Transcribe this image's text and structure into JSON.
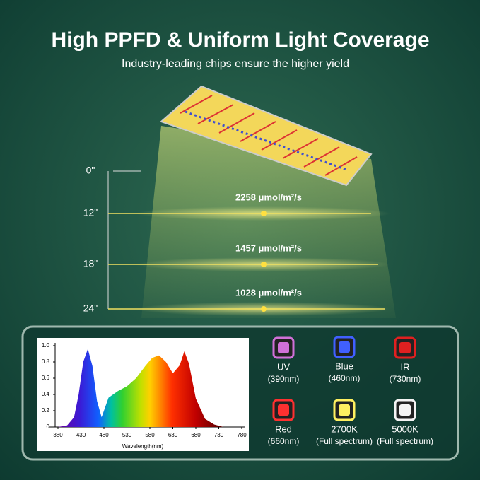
{
  "header": {
    "title": "High PPFD & Uniform Light Coverage",
    "subtitle": "Industry-leading chips ensure the higher yield"
  },
  "heights": [
    {
      "label": "0\""
    },
    {
      "label": "12\"",
      "ppfd": "2258 μmol/m²/s"
    },
    {
      "label": "18\"",
      "ppfd": "1457 μmol/m²/s"
    },
    {
      "label": "24\"",
      "ppfd": "1028 μmol/m²/s"
    }
  ],
  "spectrum": {
    "xlabel": "Wavelength(nm)",
    "x": [
      380,
      400,
      415,
      425,
      435,
      445,
      455,
      465,
      475,
      490,
      510,
      530,
      550,
      570,
      585,
      600,
      615,
      630,
      645,
      655,
      665,
      680,
      700,
      720,
      740
    ],
    "values": [
      0,
      0.02,
      0.12,
      0.4,
      0.8,
      0.96,
      0.75,
      0.32,
      0.12,
      0.36,
      0.44,
      0.5,
      0.6,
      0.75,
      0.85,
      0.88,
      0.8,
      0.66,
      0.76,
      0.93,
      0.78,
      0.35,
      0.1,
      0.03,
      0
    ],
    "xlim": [
      380,
      780
    ],
    "ylim": [
      0,
      1
    ],
    "xticks": [
      380,
      430,
      480,
      530,
      580,
      630,
      680,
      730,
      780
    ],
    "yticks": [
      0,
      0.2,
      0.4,
      0.6,
      0.8,
      {
        "value": 1,
        "label": "1.0"
      }
    ]
  },
  "leds": [
    {
      "name": "UV",
      "spec": "(390nm)",
      "color": "#d070d8"
    },
    {
      "name": "Blue",
      "spec": "(460nm)",
      "color": "#4060ff"
    },
    {
      "name": "IR",
      "spec": "(730nm)",
      "color": "#e02020"
    },
    {
      "name": "Red",
      "spec": "(660nm)",
      "color": "#ff3030"
    },
    {
      "name": "2700K",
      "spec": "(Full spectrum)",
      "color": "#fff060"
    },
    {
      "name": "5000K",
      "spec": "(Full spectrum)",
      "color": "#f4f4f4"
    }
  ]
}
